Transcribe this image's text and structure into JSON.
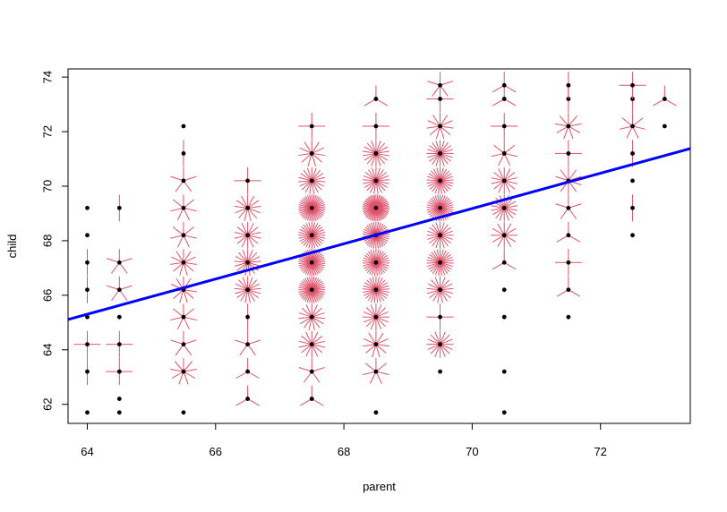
{
  "chart_data": {
    "type": "scatter",
    "title": "",
    "xlabel": "parent",
    "ylabel": "child",
    "xlim": [
      63.7,
      73.4
    ],
    "ylim": [
      61.3,
      74.3
    ],
    "x_ticks": [
      64,
      66,
      68,
      70,
      72
    ],
    "y_ticks": [
      62,
      64,
      66,
      68,
      70,
      72,
      74
    ],
    "grid": false,
    "legend": "none",
    "point_color": "#000000",
    "sunflower_color": "#DF536B",
    "line_color": "#0000FF",
    "regression_line": {
      "intercept": 23.94,
      "slope": 0.6463
    },
    "points": [
      {
        "x": 64,
        "y": 61.7,
        "n": 1
      },
      {
        "x": 64,
        "y": 63.2,
        "n": 2
      },
      {
        "x": 64,
        "y": 64.2,
        "n": 4
      },
      {
        "x": 64,
        "y": 65.2,
        "n": 1
      },
      {
        "x": 64,
        "y": 66.2,
        "n": 2
      },
      {
        "x": 64,
        "y": 67.2,
        "n": 2
      },
      {
        "x": 64,
        "y": 68.2,
        "n": 1
      },
      {
        "x": 64,
        "y": 69.2,
        "n": 1
      },
      {
        "x": 64.5,
        "y": 61.7,
        "n": 1
      },
      {
        "x": 64.5,
        "y": 62.2,
        "n": 1
      },
      {
        "x": 64.5,
        "y": 63.2,
        "n": 4
      },
      {
        "x": 64.5,
        "y": 64.2,
        "n": 4
      },
      {
        "x": 64.5,
        "y": 65.2,
        "n": 1
      },
      {
        "x": 64.5,
        "y": 66.2,
        "n": 5
      },
      {
        "x": 64.5,
        "y": 67.2,
        "n": 5
      },
      {
        "x": 64.5,
        "y": 69.2,
        "n": 2
      },
      {
        "x": 65.5,
        "y": 61.7,
        "n": 1
      },
      {
        "x": 65.5,
        "y": 63.2,
        "n": 9
      },
      {
        "x": 65.5,
        "y": 64.2,
        "n": 5
      },
      {
        "x": 65.5,
        "y": 65.2,
        "n": 7
      },
      {
        "x": 65.5,
        "y": 66.2,
        "n": 11
      },
      {
        "x": 65.5,
        "y": 67.2,
        "n": 11
      },
      {
        "x": 65.5,
        "y": 68.2,
        "n": 7
      },
      {
        "x": 65.5,
        "y": 69.2,
        "n": 7
      },
      {
        "x": 65.5,
        "y": 70.2,
        "n": 5
      },
      {
        "x": 65.5,
        "y": 71.2,
        "n": 2
      },
      {
        "x": 65.5,
        "y": 72.2,
        "n": 1
      },
      {
        "x": 66.5,
        "y": 62.2,
        "n": 3
      },
      {
        "x": 66.5,
        "y": 63.2,
        "n": 3
      },
      {
        "x": 66.5,
        "y": 64.2,
        "n": 5
      },
      {
        "x": 66.5,
        "y": 65.2,
        "n": 2
      },
      {
        "x": 66.5,
        "y": 66.2,
        "n": 17
      },
      {
        "x": 66.5,
        "y": 67.2,
        "n": 17
      },
      {
        "x": 66.5,
        "y": 68.2,
        "n": 14
      },
      {
        "x": 66.5,
        "y": 69.2,
        "n": 13
      },
      {
        "x": 66.5,
        "y": 70.2,
        "n": 4
      },
      {
        "x": 67.5,
        "y": 62.2,
        "n": 3
      },
      {
        "x": 67.5,
        "y": 63.2,
        "n": 5
      },
      {
        "x": 67.5,
        "y": 64.2,
        "n": 14
      },
      {
        "x": 67.5,
        "y": 65.2,
        "n": 15
      },
      {
        "x": 67.5,
        "y": 66.2,
        "n": 36
      },
      {
        "x": 67.5,
        "y": 67.2,
        "n": 38
      },
      {
        "x": 67.5,
        "y": 68.2,
        "n": 28
      },
      {
        "x": 67.5,
        "y": 69.2,
        "n": 38
      },
      {
        "x": 67.5,
        "y": 70.2,
        "n": 19
      },
      {
        "x": 67.5,
        "y": 71.2,
        "n": 11
      },
      {
        "x": 67.5,
        "y": 72.2,
        "n": 4
      },
      {
        "x": 68.5,
        "y": 61.7,
        "n": 1
      },
      {
        "x": 68.5,
        "y": 63.2,
        "n": 7
      },
      {
        "x": 68.5,
        "y": 64.2,
        "n": 11
      },
      {
        "x": 68.5,
        "y": 65.2,
        "n": 16
      },
      {
        "x": 68.5,
        "y": 66.2,
        "n": 25
      },
      {
        "x": 68.5,
        "y": 67.2,
        "n": 31
      },
      {
        "x": 68.5,
        "y": 68.2,
        "n": 34
      },
      {
        "x": 68.5,
        "y": 69.2,
        "n": 48
      },
      {
        "x": 68.5,
        "y": 70.2,
        "n": 21
      },
      {
        "x": 68.5,
        "y": 71.2,
        "n": 18
      },
      {
        "x": 68.5,
        "y": 72.2,
        "n": 4
      },
      {
        "x": 68.5,
        "y": 73.2,
        "n": 3
      },
      {
        "x": 69.5,
        "y": 63.2,
        "n": 1
      },
      {
        "x": 69.5,
        "y": 64.2,
        "n": 16
      },
      {
        "x": 69.5,
        "y": 65.2,
        "n": 4
      },
      {
        "x": 69.5,
        "y": 66.2,
        "n": 17
      },
      {
        "x": 69.5,
        "y": 67.2,
        "n": 27
      },
      {
        "x": 69.5,
        "y": 68.2,
        "n": 20
      },
      {
        "x": 69.5,
        "y": 69.2,
        "n": 33
      },
      {
        "x": 69.5,
        "y": 70.2,
        "n": 25
      },
      {
        "x": 69.5,
        "y": 71.2,
        "n": 20
      },
      {
        "x": 69.5,
        "y": 72.2,
        "n": 11
      },
      {
        "x": 69.5,
        "y": 73.2,
        "n": 4
      },
      {
        "x": 69.5,
        "y": 73.7,
        "n": 5
      },
      {
        "x": 70.5,
        "y": 61.7,
        "n": 1
      },
      {
        "x": 70.5,
        "y": 63.2,
        "n": 1
      },
      {
        "x": 70.5,
        "y": 65.2,
        "n": 1
      },
      {
        "x": 70.5,
        "y": 66.2,
        "n": 1
      },
      {
        "x": 70.5,
        "y": 67.2,
        "n": 3
      },
      {
        "x": 70.5,
        "y": 68.2,
        "n": 12
      },
      {
        "x": 70.5,
        "y": 69.2,
        "n": 18
      },
      {
        "x": 70.5,
        "y": 70.2,
        "n": 14
      },
      {
        "x": 70.5,
        "y": 71.2,
        "n": 7
      },
      {
        "x": 70.5,
        "y": 72.2,
        "n": 4
      },
      {
        "x": 70.5,
        "y": 73.2,
        "n": 3
      },
      {
        "x": 70.5,
        "y": 73.7,
        "n": 3
      },
      {
        "x": 71.5,
        "y": 65.2,
        "n": 1
      },
      {
        "x": 71.5,
        "y": 66.2,
        "n": 3
      },
      {
        "x": 71.5,
        "y": 67.2,
        "n": 4
      },
      {
        "x": 71.5,
        "y": 68.2,
        "n": 3
      },
      {
        "x": 71.5,
        "y": 69.2,
        "n": 5
      },
      {
        "x": 71.5,
        "y": 70.2,
        "n": 10
      },
      {
        "x": 71.5,
        "y": 71.2,
        "n": 4
      },
      {
        "x": 71.5,
        "y": 72.2,
        "n": 9
      },
      {
        "x": 71.5,
        "y": 73.2,
        "n": 2
      },
      {
        "x": 71.5,
        "y": 73.7,
        "n": 2
      },
      {
        "x": 72.5,
        "y": 68.2,
        "n": 1
      },
      {
        "x": 72.5,
        "y": 69.2,
        "n": 2
      },
      {
        "x": 72.5,
        "y": 70.2,
        "n": 1
      },
      {
        "x": 72.5,
        "y": 71.2,
        "n": 2
      },
      {
        "x": 72.5,
        "y": 72.2,
        "n": 7
      },
      {
        "x": 72.5,
        "y": 73.2,
        "n": 2
      },
      {
        "x": 72.5,
        "y": 73.7,
        "n": 4
      },
      {
        "x": 73,
        "y": 72.2,
        "n": 1
      },
      {
        "x": 73,
        "y": 73.2,
        "n": 3
      }
    ]
  }
}
